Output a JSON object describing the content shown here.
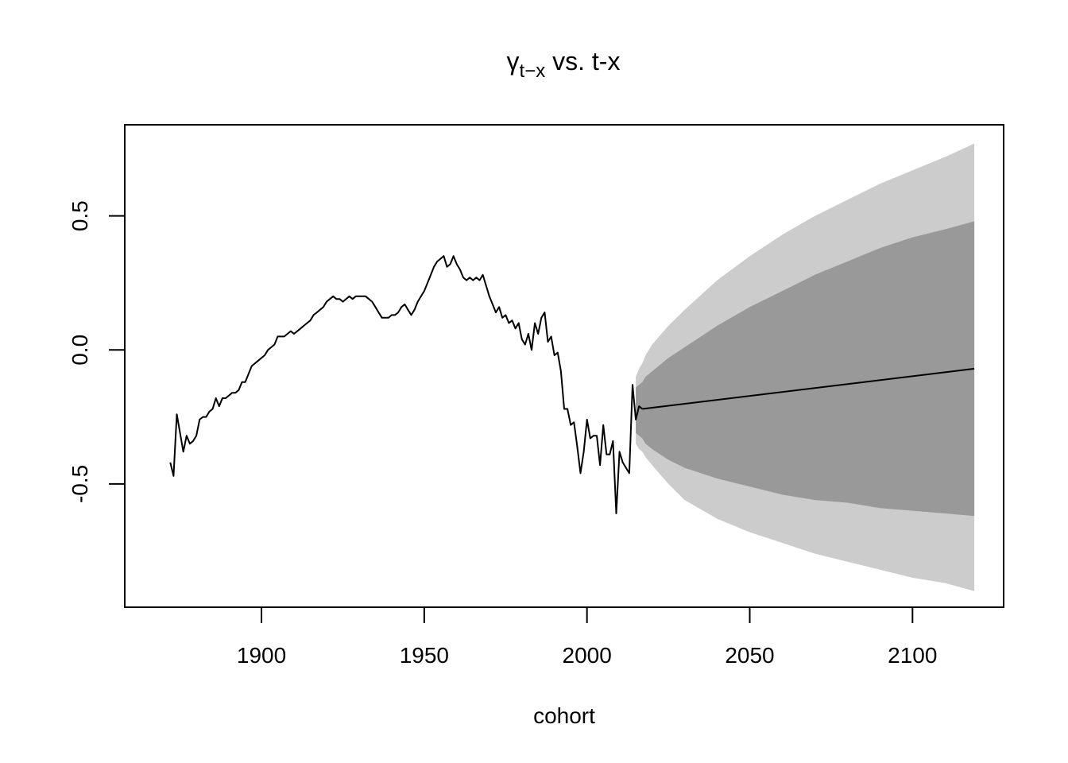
{
  "chart_data": {
    "type": "line",
    "title": {
      "symbol": "γ",
      "subscript": "t−x",
      "rest": " vs. t-x"
    },
    "xlabel": "cohort",
    "ylabel": "",
    "xlim": [
      1858,
      2128
    ],
    "ylim": [
      -0.96,
      0.84
    ],
    "x_ticks": [
      1900,
      1950,
      2000,
      2050,
      2100
    ],
    "x_tick_labels": [
      "1900",
      "1950",
      "2000",
      "2050",
      "2100"
    ],
    "y_ticks": [
      -0.5,
      0.0,
      0.5
    ],
    "y_tick_labels": [
      "-0.5",
      "0.0",
      "0.5"
    ],
    "grid": false,
    "legend": "none",
    "colors": {
      "line": "#000000",
      "band_outer": "#cccccc",
      "band_inner": "#999999",
      "frame": "#000000"
    },
    "series": [
      {
        "role": "observed",
        "x": [
          1872,
          1873,
          1874,
          1875,
          1876,
          1877,
          1878,
          1879,
          1880,
          1881,
          1882,
          1883,
          1884,
          1885,
          1886,
          1887,
          1888,
          1889,
          1890,
          1891,
          1892,
          1893,
          1894,
          1895,
          1896,
          1897,
          1898,
          1899,
          1900,
          1901,
          1902,
          1903,
          1904,
          1905,
          1906,
          1907,
          1908,
          1909,
          1910,
          1911,
          1912,
          1913,
          1914,
          1915,
          1916,
          1917,
          1918,
          1919,
          1920,
          1921,
          1922,
          1923,
          1924,
          1925,
          1926,
          1927,
          1928,
          1929,
          1930,
          1931,
          1932,
          1933,
          1934,
          1935,
          1936,
          1937,
          1938,
          1939,
          1940,
          1941,
          1942,
          1943,
          1944,
          1945,
          1946,
          1947,
          1948,
          1949,
          1950,
          1951,
          1952,
          1953,
          1954,
          1955,
          1956,
          1957,
          1958,
          1959,
          1960,
          1961,
          1962,
          1963,
          1964,
          1965,
          1966,
          1967,
          1968,
          1969,
          1970,
          1971,
          1972,
          1973,
          1974,
          1975,
          1976,
          1977,
          1978,
          1979,
          1980,
          1981,
          1982,
          1983,
          1984,
          1985,
          1986,
          1987,
          1988,
          1989,
          1990,
          1991,
          1992,
          1993,
          1994,
          1995,
          1996,
          1997,
          1998,
          1999,
          2000,
          2001,
          2002,
          2003,
          2004,
          2005,
          2006,
          2007,
          2008,
          2009,
          2010,
          2011,
          2012,
          2013,
          2014,
          2015,
          2016,
          2017
        ],
        "y": [
          -0.42,
          -0.47,
          -0.24,
          -0.31,
          -0.38,
          -0.32,
          -0.35,
          -0.34,
          -0.32,
          -0.26,
          -0.25,
          -0.25,
          -0.23,
          -0.22,
          -0.18,
          -0.21,
          -0.18,
          -0.18,
          -0.17,
          -0.16,
          -0.16,
          -0.15,
          -0.12,
          -0.12,
          -0.09,
          -0.06,
          -0.05,
          -0.04,
          -0.03,
          -0.02,
          0.0,
          0.01,
          0.02,
          0.05,
          0.05,
          0.05,
          0.06,
          0.07,
          0.06,
          0.07,
          0.08,
          0.09,
          0.1,
          0.11,
          0.13,
          0.14,
          0.15,
          0.16,
          0.18,
          0.19,
          0.2,
          0.19,
          0.19,
          0.18,
          0.19,
          0.2,
          0.19,
          0.2,
          0.2,
          0.2,
          0.2,
          0.19,
          0.18,
          0.16,
          0.14,
          0.12,
          0.12,
          0.12,
          0.13,
          0.13,
          0.14,
          0.16,
          0.17,
          0.15,
          0.13,
          0.15,
          0.18,
          0.2,
          0.22,
          0.25,
          0.28,
          0.31,
          0.33,
          0.34,
          0.35,
          0.31,
          0.32,
          0.35,
          0.32,
          0.3,
          0.27,
          0.26,
          0.27,
          0.26,
          0.27,
          0.26,
          0.28,
          0.24,
          0.2,
          0.17,
          0.14,
          0.16,
          0.12,
          0.13,
          0.1,
          0.11,
          0.08,
          0.1,
          0.04,
          0.02,
          0.06,
          0.0,
          0.1,
          0.06,
          0.12,
          0.14,
          0.03,
          0.05,
          -0.02,
          -0.01,
          -0.08,
          -0.22,
          -0.22,
          -0.28,
          -0.27,
          -0.36,
          -0.46,
          -0.38,
          -0.26,
          -0.33,
          -0.32,
          -0.32,
          -0.43,
          -0.28,
          -0.39,
          -0.39,
          -0.34,
          -0.61,
          -0.38,
          -0.42,
          -0.44,
          -0.46,
          -0.13,
          -0.26,
          -0.21,
          -0.22
        ]
      },
      {
        "role": "forecast",
        "x": [
          2017,
          2119
        ],
        "y": [
          -0.22,
          -0.07
        ]
      }
    ],
    "bands": [
      {
        "role": "outer",
        "x": [
          2015,
          2016,
          2017,
          2018,
          2020,
          2025,
          2030,
          2040,
          2050,
          2060,
          2070,
          2080,
          2090,
          2100,
          2110,
          2119
        ],
        "lower": [
          -0.35,
          -0.37,
          -0.38,
          -0.4,
          -0.43,
          -0.5,
          -0.56,
          -0.63,
          -0.68,
          -0.72,
          -0.76,
          -0.79,
          -0.82,
          -0.85,
          -0.87,
          -0.9
        ],
        "upper": [
          -0.1,
          -0.07,
          -0.05,
          -0.02,
          0.02,
          0.09,
          0.15,
          0.26,
          0.35,
          0.43,
          0.5,
          0.56,
          0.62,
          0.67,
          0.72,
          0.77
        ]
      },
      {
        "role": "inner",
        "x": [
          2015,
          2016,
          2017,
          2018,
          2020,
          2025,
          2030,
          2040,
          2050,
          2060,
          2070,
          2080,
          2090,
          2100,
          2110,
          2119
        ],
        "lower": [
          -0.31,
          -0.32,
          -0.33,
          -0.35,
          -0.37,
          -0.41,
          -0.44,
          -0.48,
          -0.51,
          -0.54,
          -0.56,
          -0.57,
          -0.59,
          -0.6,
          -0.61,
          -0.62
        ],
        "upper": [
          -0.14,
          -0.13,
          -0.12,
          -0.1,
          -0.08,
          -0.03,
          0.01,
          0.09,
          0.16,
          0.22,
          0.28,
          0.33,
          0.38,
          0.42,
          0.45,
          0.48
        ]
      }
    ]
  }
}
